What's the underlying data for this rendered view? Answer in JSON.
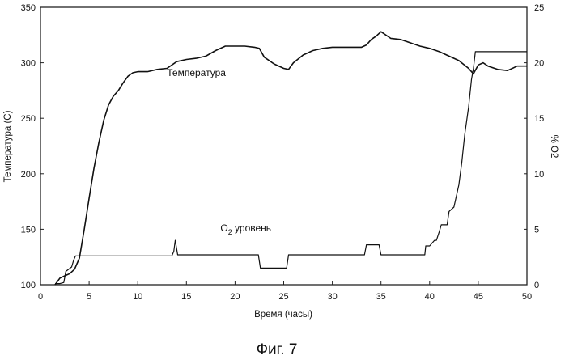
{
  "chart_data": {
    "type": "line",
    "caption": "Фиг. 7",
    "xlabel": "Время (часы)",
    "ylabel_left": "Температура (С)",
    "ylabel_right": "% О2",
    "xlim": [
      0,
      50
    ],
    "ylim_left": [
      100,
      350
    ],
    "ylim_right": [
      0,
      25
    ],
    "x_ticks": [
      0,
      5,
      10,
      15,
      20,
      25,
      30,
      35,
      40,
      45,
      50
    ],
    "y_ticks_left": [
      100,
      150,
      200,
      250,
      300,
      350
    ],
    "y_ticks_right": [
      0,
      5,
      10,
      15,
      20,
      25
    ],
    "grid": false,
    "annotations": [
      {
        "text": "Температура",
        "x": 13,
        "y": 288,
        "axis": "left"
      },
      {
        "text_main": "О",
        "text_sub": "2",
        "text_rest": " уровень",
        "x": 18.5,
        "y": 4.8,
        "axis": "right"
      }
    ],
    "series": [
      {
        "name": "Температура",
        "axis": "left",
        "x": [
          1.5,
          2,
          2.5,
          3,
          3.5,
          4,
          4.5,
          5,
          5.5,
          6,
          6.5,
          7,
          7.5,
          8,
          8.5,
          9,
          9.5,
          10,
          11,
          12,
          13,
          14,
          15,
          16,
          17,
          18,
          19,
          20,
          21,
          22,
          22.5,
          23,
          24,
          25,
          25.5,
          26,
          27,
          28,
          29,
          30,
          31,
          32,
          33,
          33.5,
          34,
          34.5,
          35,
          36,
          37,
          38,
          39,
          40,
          41,
          42,
          43,
          44,
          44.5,
          45,
          45.5,
          46,
          47,
          48,
          49,
          50
        ],
        "y": [
          100,
          106,
          108,
          110,
          114,
          124,
          150,
          178,
          205,
          228,
          248,
          262,
          270,
          275,
          282,
          288,
          291,
          292,
          292,
          294,
          295,
          301,
          303,
          304,
          306,
          311,
          315,
          315,
          315,
          314,
          313,
          305,
          299,
          295,
          294,
          300,
          307,
          311,
          313,
          314,
          314,
          314,
          314,
          316,
          321,
          324,
          328,
          322,
          321,
          318,
          315,
          313,
          310,
          306,
          302,
          295,
          290,
          298,
          300,
          297,
          294,
          293,
          297,
          297
        ]
      },
      {
        "name": "О2 уровень",
        "axis": "right",
        "x": [
          1.5,
          2,
          2.4,
          2.6,
          3.2,
          3.4,
          3.6,
          4,
          10,
          13.5,
          13.7,
          13.85,
          14.1,
          22.4,
          22.6,
          25.3,
          25.5,
          33.3,
          33.5,
          34.8,
          35,
          39.5,
          39.6,
          40,
          40.5,
          40.7,
          41,
          41.2,
          41.8,
          42,
          42.5,
          43,
          43.3,
          43.6,
          44,
          44.3,
          44.5,
          44.7,
          45,
          50
        ],
        "y": [
          0.1,
          0.1,
          0.2,
          1.2,
          1.6,
          2.2,
          2.6,
          2.6,
          2.6,
          2.6,
          3.0,
          4.0,
          2.7,
          2.7,
          1.5,
          1.5,
          2.7,
          2.7,
          3.6,
          3.6,
          2.7,
          2.7,
          3.5,
          3.5,
          4.0,
          4.0,
          4.8,
          5.4,
          5.4,
          6.6,
          7.0,
          9.0,
          11.0,
          13.5,
          16.0,
          18.5,
          19.5,
          21.0,
          21.0,
          21.0
        ]
      }
    ]
  }
}
